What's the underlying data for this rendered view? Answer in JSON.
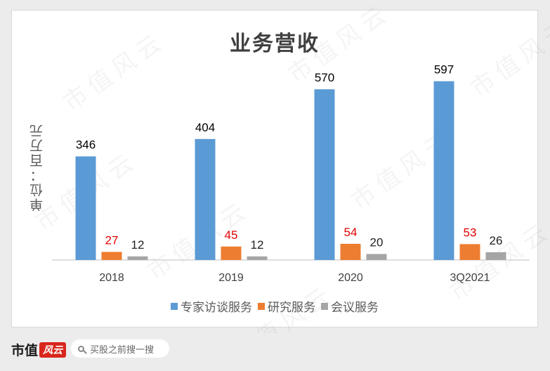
{
  "chart_data": {
    "type": "bar",
    "title": "业务营收",
    "ylabel": "单位：百万元",
    "categories": [
      "2018",
      "2019",
      "2020",
      "3Q2021"
    ],
    "series": [
      {
        "name": "专家访谈服务",
        "values": [
          346,
          404,
          570,
          597
        ],
        "color": "#5b9bd5",
        "label_color": "#000000"
      },
      {
        "name": "研究服务",
        "values": [
          27,
          45,
          54,
          53
        ],
        "color": "#ed7d31",
        "label_color": "#e00000"
      },
      {
        "name": "会议服务",
        "values": [
          12,
          12,
          20,
          26
        ],
        "color": "#a5a5a5",
        "label_color": "#222222"
      }
    ],
    "ylim": [
      0,
      650
    ],
    "grid": false,
    "legend": "bottom"
  },
  "watermark": {
    "text": "市值风云"
  },
  "footer": {
    "brand_main": "市值",
    "brand_accent": "风云",
    "search_placeholder": "买股之前搜一搜"
  }
}
